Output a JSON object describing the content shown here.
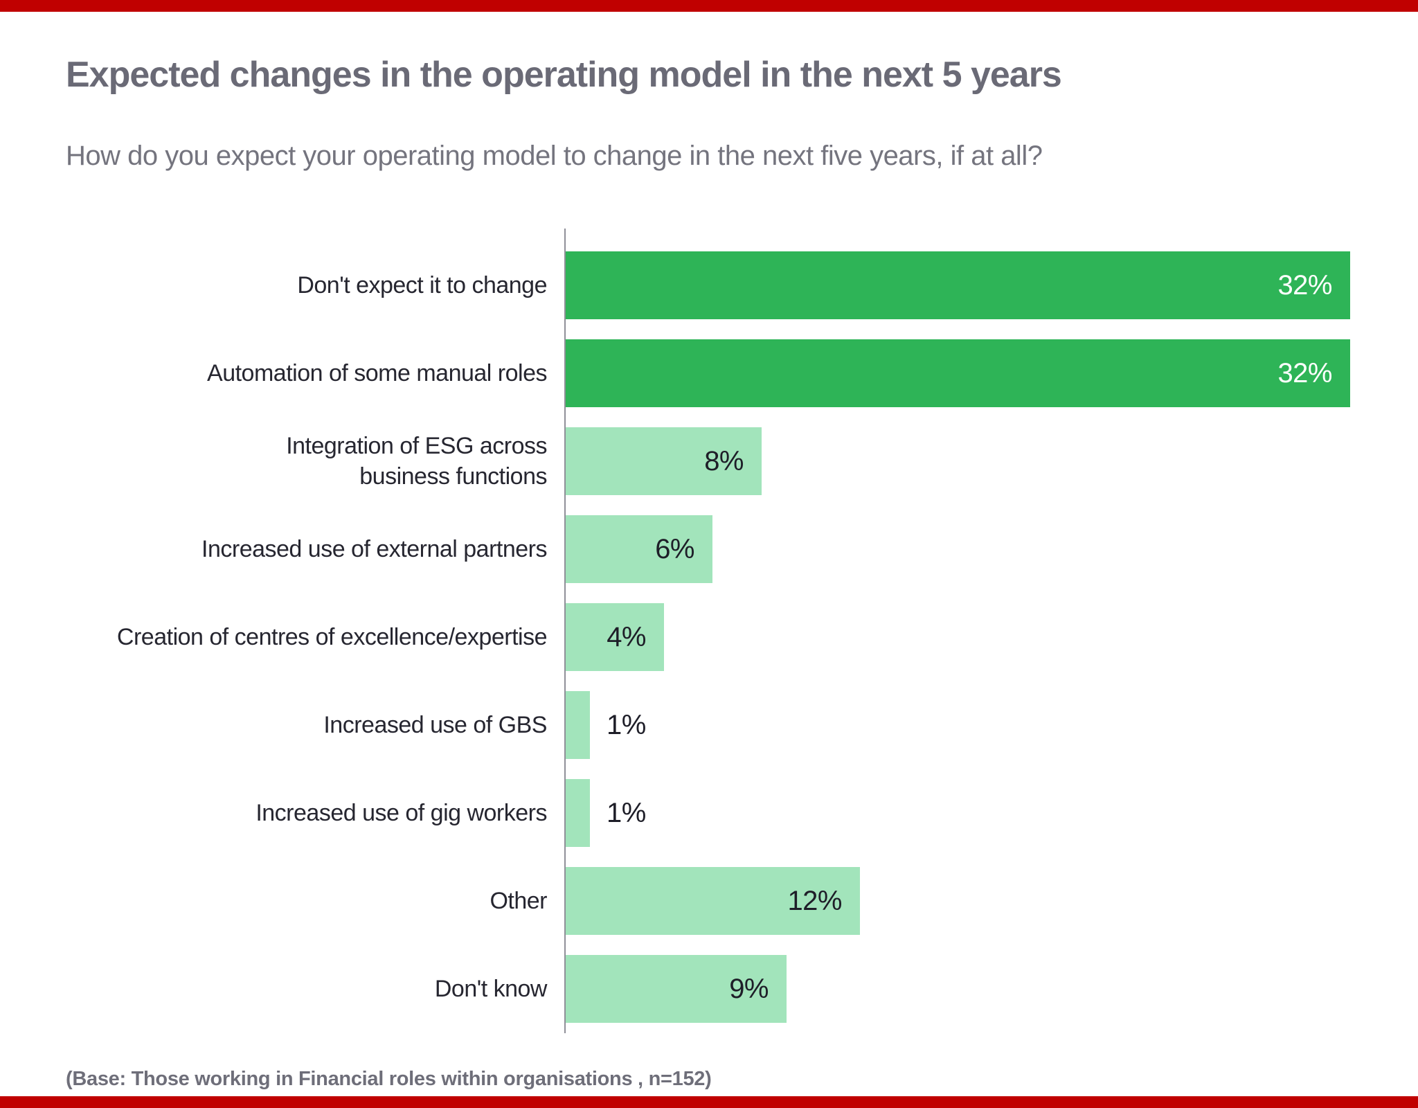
{
  "page": {
    "title": "Expected changes in the operating model in the next 5 years",
    "subtitle": "How do you expect your operating model to change in the next five years, if at all?",
    "base_note": "(Base: Those working in Financial roles within organisations , n=152)"
  },
  "colors": {
    "bar_primary": "#2EB457",
    "bar_secondary": "#A2E4BB",
    "accent_strip": "#C00000",
    "axis": "#8F8F98",
    "title_text": "#6A6A76",
    "subtitle_text": "#74747E",
    "label_text": "#262630",
    "value_on_dark": "#FFFFFF",
    "value_on_light": "#1E1E28"
  },
  "chart_data": {
    "type": "bar",
    "orientation": "horizontal",
    "title": "Expected changes in the operating model in the next 5 years",
    "subtitle": "How do you expect your operating model to change in the next five years, if at all?",
    "source": "(Base: Those working in Financial roles within organisations , n=152)",
    "unit": "%",
    "xlim": [
      0,
      35
    ],
    "grid": false,
    "legend": false,
    "categories": [
      "Don't expect it to change",
      "Automation of some manual roles",
      "Integration of ESG across\nbusiness functions",
      "Increased use of external partners",
      "Creation of centres of excellence/expertise",
      "Increased use of GBS",
      "Increased use of gig workers",
      "Other",
      "Don't know"
    ],
    "values": [
      32,
      32,
      8,
      6,
      4,
      1,
      1,
      12,
      9
    ],
    "value_labels": [
      "32%",
      "32%",
      "8%",
      "6%",
      "4%",
      "1%",
      "1%",
      "12%",
      "9%"
    ],
    "bar_styles": [
      "dark",
      "dark",
      "light",
      "light",
      "light",
      "light",
      "light",
      "light",
      "light"
    ],
    "value_label_positions": [
      "inside",
      "inside",
      "inside",
      "inside",
      "inside",
      "outside",
      "outside",
      "inside",
      "inside"
    ]
  }
}
